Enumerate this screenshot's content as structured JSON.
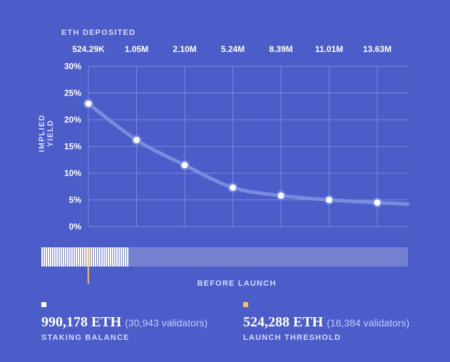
{
  "chart_data": {
    "type": "line",
    "xlabel": "ETH DEPOSITED",
    "ylabel": "IMPLIED YIELD",
    "categories": [
      "524.29K",
      "1.05M",
      "2.10M",
      "5.24M",
      "8.39M",
      "11.01M",
      "13.63M"
    ],
    "series": [
      {
        "values": [
          23,
          16.2,
          11.5,
          7.3,
          5.8,
          5.0,
          4.5
        ]
      }
    ],
    "y_ticks": [
      "30%",
      "25%",
      "20%",
      "15%",
      "10%",
      "5%",
      "0%"
    ],
    "ylim": [
      0,
      30
    ],
    "grid": true,
    "colors": {
      "background": "#4c5cc8",
      "line": "#7b8be0",
      "point": "#ffffff",
      "grid": "#7b88dc"
    }
  },
  "progress": {
    "label": "BEFORE LAUNCH",
    "deposited_fraction_of_track": 0.24,
    "threshold_fraction_of_track": 0.128,
    "colors": {
      "filled": "#ffffff",
      "track": "#7480d0",
      "threshold": "#f5c05a"
    }
  },
  "stats": {
    "staking": {
      "value": "990,178 ETH",
      "sub": "(30,943 validators)",
      "label": "STAKING BALANCE",
      "marker_color": "#ffffff"
    },
    "threshold": {
      "value": "524,288 ETH",
      "sub": "(16,384 validators)",
      "label": "LAUNCH THRESHOLD",
      "marker_color": "#f5c05a"
    }
  }
}
